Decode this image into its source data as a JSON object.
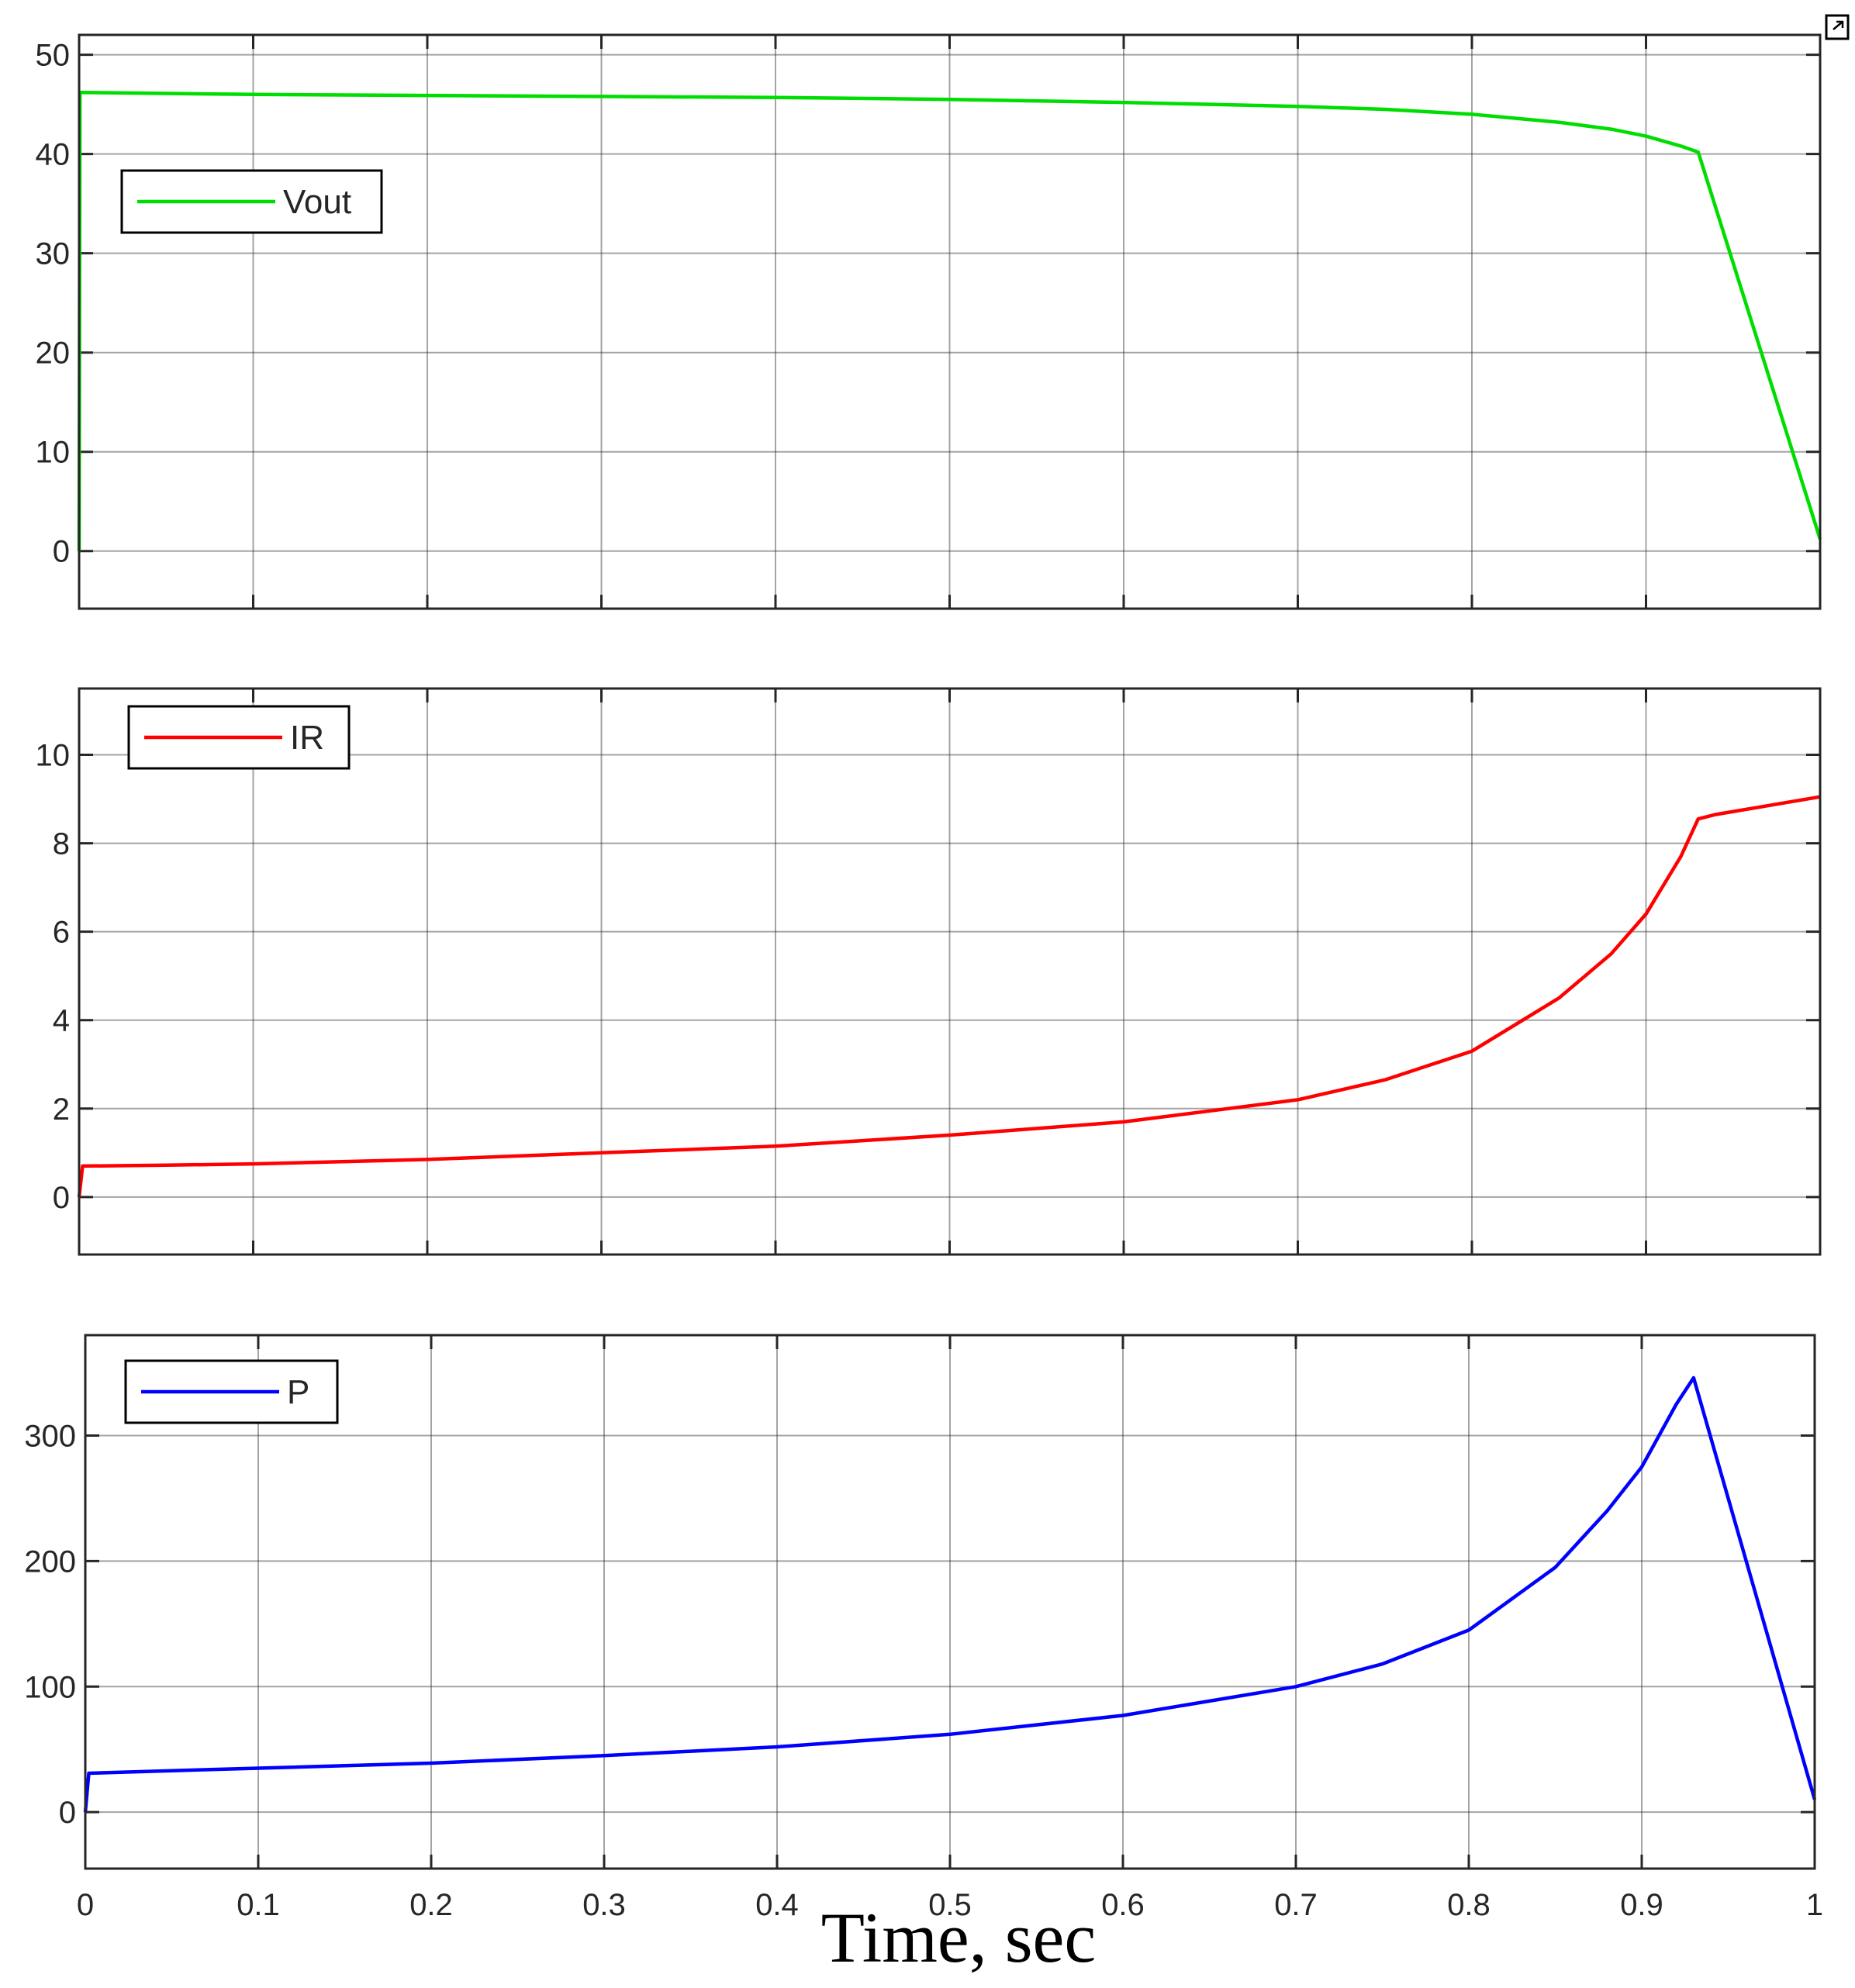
{
  "chart_data": [
    {
      "type": "line",
      "title": "",
      "xlabel": "",
      "ylabel": "",
      "xlim": [
        0,
        1
      ],
      "ylim": [
        -5.8,
        52
      ],
      "xticks": [
        0,
        0.1,
        0.2,
        0.3,
        0.4,
        0.5,
        0.6,
        0.7,
        0.8,
        0.9,
        1
      ],
      "xtick_labels_shown": false,
      "yticks": [
        0,
        10,
        20,
        30,
        40,
        50
      ],
      "grid": true,
      "legend_position": "upper-left",
      "series": [
        {
          "name": "Vout",
          "color": "#00dd00",
          "x": [
            0,
            0.0005,
            0.001,
            0.05,
            0.1,
            0.2,
            0.3,
            0.4,
            0.5,
            0.6,
            0.7,
            0.75,
            0.8,
            0.85,
            0.88,
            0.9,
            0.92,
            0.93,
            1.0
          ],
          "y": [
            0,
            46,
            46.2,
            46.1,
            46,
            45.9,
            45.8,
            45.7,
            45.5,
            45.2,
            44.8,
            44.5,
            44,
            43.2,
            42.5,
            41.8,
            40.8,
            40.2,
            1.2
          ]
        }
      ]
    },
    {
      "type": "line",
      "title": "",
      "xlabel": "",
      "ylabel": "",
      "xlim": [
        0,
        1
      ],
      "ylim": [
        -1.3,
        11.5
      ],
      "xticks": [
        0,
        0.1,
        0.2,
        0.3,
        0.4,
        0.5,
        0.6,
        0.7,
        0.8,
        0.9,
        1
      ],
      "xtick_labels_shown": false,
      "yticks": [
        0,
        2,
        4,
        6,
        8,
        10
      ],
      "grid": true,
      "legend_position": "upper-left",
      "series": [
        {
          "name": "IR",
          "color": "#ff0000",
          "x": [
            0,
            0.002,
            0.05,
            0.1,
            0.2,
            0.3,
            0.4,
            0.5,
            0.6,
            0.7,
            0.75,
            0.8,
            0.85,
            0.88,
            0.9,
            0.92,
            0.93,
            0.94,
            1.0
          ],
          "y": [
            0,
            0.7,
            0.72,
            0.75,
            0.85,
            1.0,
            1.15,
            1.4,
            1.7,
            2.2,
            2.65,
            3.3,
            4.5,
            5.5,
            6.4,
            7.7,
            8.55,
            8.65,
            9.05
          ]
        }
      ]
    },
    {
      "type": "line",
      "title": "",
      "xlabel": "Time, sec",
      "ylabel": "",
      "xlim": [
        0,
        1
      ],
      "ylim": [
        -45,
        380
      ],
      "xticks": [
        0,
        0.1,
        0.2,
        0.3,
        0.4,
        0.5,
        0.6,
        0.7,
        0.8,
        0.9,
        1
      ],
      "xtick_labels": [
        "0",
        "0.1",
        "0.2",
        "0.3",
        "0.4",
        "0.5",
        "0.6",
        "0.7",
        "0.8",
        "0.9",
        "1"
      ],
      "yticks": [
        0,
        100,
        200,
        300
      ],
      "grid": true,
      "legend_position": "upper-left",
      "series": [
        {
          "name": "P",
          "color": "#0000ff",
          "x": [
            0,
            0.002,
            0.05,
            0.1,
            0.2,
            0.3,
            0.4,
            0.5,
            0.6,
            0.7,
            0.75,
            0.8,
            0.85,
            0.88,
            0.9,
            0.92,
            0.93,
            1.0
          ],
          "y": [
            0,
            31,
            33,
            35,
            39,
            45,
            52,
            62,
            77,
            100,
            118,
            145,
            195,
            240,
            275,
            325,
            346,
            10
          ]
        }
      ]
    }
  ]
}
